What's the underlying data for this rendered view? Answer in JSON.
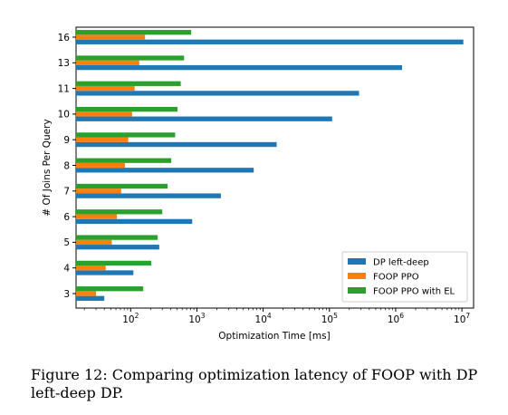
{
  "chart_data": {
    "type": "bar",
    "orientation": "horizontal",
    "xlabel": "Optimization Time [ms]",
    "ylabel": "# Of Joins Per Query",
    "xscale": "log",
    "xlim": [
      15,
      15000000
    ],
    "categories": [
      "3",
      "4",
      "5",
      "6",
      "7",
      "8",
      "9",
      "10",
      "11",
      "13",
      "16"
    ],
    "x_ticks": [
      {
        "value": 100,
        "base": "10",
        "exp": "2"
      },
      {
        "value": 1000,
        "base": "10",
        "exp": "3"
      },
      {
        "value": 10000,
        "base": "10",
        "exp": "4"
      },
      {
        "value": 100000,
        "base": "10",
        "exp": "5"
      },
      {
        "value": 1000000,
        "base": "10",
        "exp": "6"
      },
      {
        "value": 10000000,
        "base": "10",
        "exp": "7"
      }
    ],
    "series": [
      {
        "name": "DP left-deep",
        "color": "#1f77b4",
        "values": [
          40,
          110,
          270,
          850,
          2300,
          7200,
          16000,
          110000,
          280000,
          1250000,
          10500000
        ]
      },
      {
        "name": "FOOP PPO",
        "color": "#ff7f0e",
        "values": [
          30,
          42,
          52,
          62,
          72,
          82,
          92,
          105,
          115,
          135,
          165
        ]
      },
      {
        "name": "FOOP PPO with EL",
        "color": "#2ca02c",
        "values": [
          155,
          205,
          255,
          300,
          360,
          410,
          470,
          510,
          570,
          640,
          820
        ]
      }
    ],
    "legend": "lower-right",
    "grid": false
  },
  "caption": "Figure 12: Comparing optimization latency of FOOP with DP left-deep DP."
}
